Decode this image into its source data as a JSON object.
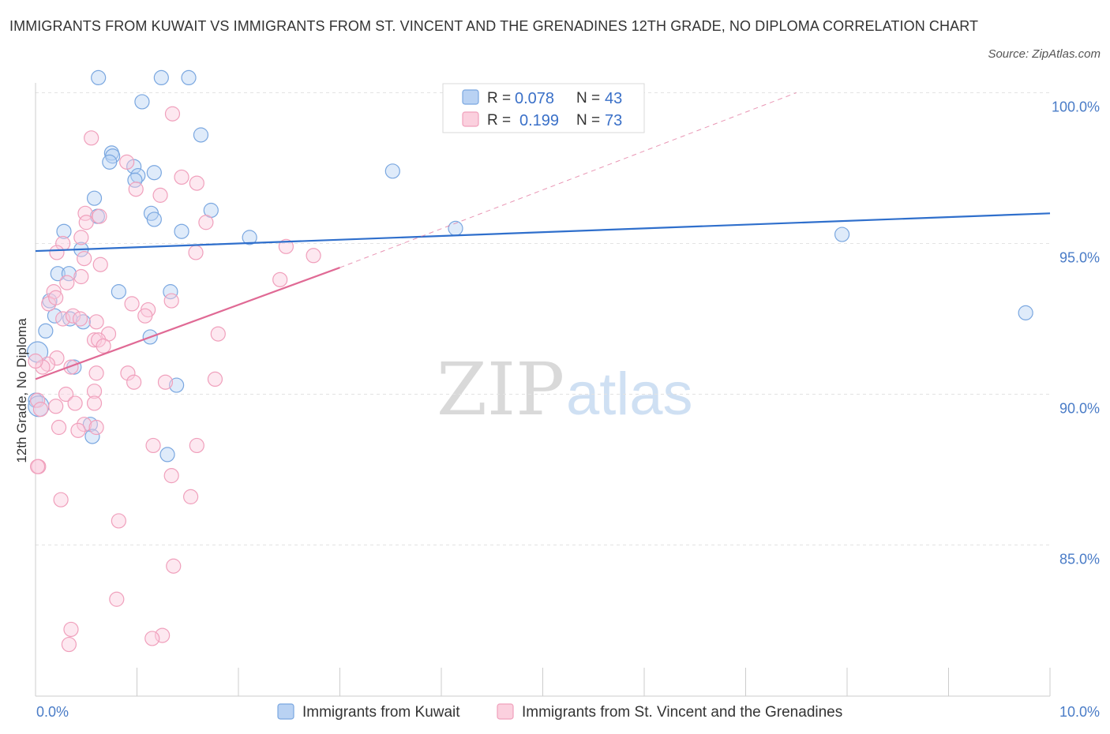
{
  "title": "IMMIGRANTS FROM KUWAIT VS IMMIGRANTS FROM ST. VINCENT AND THE GRENADINES 12TH GRADE, NO DIPLOMA CORRELATION CHART",
  "source": "Source: ZipAtlas.com",
  "watermark": {
    "zip": "ZIP",
    "atlas": "atlas"
  },
  "chart_data": {
    "type": "scatter",
    "ylabel": "12th Grade, No Diploma",
    "xlim": [
      0,
      10
    ],
    "ylim": [
      80,
      100
    ],
    "x_tick_labels": [
      "0.0%",
      "10.0%"
    ],
    "y_ticks": [
      85,
      90,
      95,
      100
    ],
    "y_tick_labels": [
      "85.0%",
      "90.0%",
      "95.0%",
      "100.0%"
    ],
    "legend": [
      {
        "r_label": "R = ",
        "r_value": "0.078",
        "n_label": "N = ",
        "n_value": "43",
        "color": "#7aa7e0"
      },
      {
        "r_label": "R = ",
        "r_value": "0.199",
        "n_label": "N = ",
        "n_value": "73",
        "color": "#f0a0bc"
      }
    ],
    "series": [
      {
        "name": "Immigrants from Kuwait",
        "color": "#7aa7e0",
        "line_color": "#2f6fcc",
        "trend": {
          "x0": 0.0,
          "y0": 94.75,
          "x1": 10.0,
          "y1": 96.0
        },
        "points": [
          [
            0.62,
            100.5
          ],
          [
            1.24,
            100.5
          ],
          [
            1.51,
            100.5
          ],
          [
            1.05,
            99.7
          ],
          [
            1.63,
            98.6
          ],
          [
            0.75,
            98.0
          ],
          [
            0.76,
            97.9
          ],
          [
            0.73,
            97.7
          ],
          [
            0.97,
            97.55
          ],
          [
            1.17,
            97.35
          ],
          [
            1.01,
            97.25
          ],
          [
            0.98,
            97.1
          ],
          [
            3.52,
            97.4
          ],
          [
            0.58,
            96.5
          ],
          [
            0.61,
            95.9
          ],
          [
            1.14,
            96.0
          ],
          [
            1.17,
            95.8
          ],
          [
            1.73,
            96.1
          ],
          [
            1.44,
            95.4
          ],
          [
            0.28,
            95.4
          ],
          [
            2.11,
            95.2
          ],
          [
            4.14,
            95.5
          ],
          [
            7.95,
            95.3
          ],
          [
            0.45,
            94.8
          ],
          [
            0.22,
            94.0
          ],
          [
            0.33,
            94.0
          ],
          [
            0.82,
            93.4
          ],
          [
            1.33,
            93.4
          ],
          [
            0.14,
            93.1
          ],
          [
            0.19,
            92.6
          ],
          [
            0.34,
            92.5
          ],
          [
            0.47,
            92.4
          ],
          [
            0.1,
            92.1
          ],
          [
            1.13,
            91.9
          ],
          [
            9.76,
            92.7
          ],
          [
            0.02,
            91.4
          ],
          [
            0.38,
            90.9
          ],
          [
            1.39,
            90.3
          ],
          [
            0.0,
            89.8
          ],
          [
            0.54,
            89.0
          ],
          [
            0.56,
            88.6
          ],
          [
            1.3,
            88.0
          ],
          [
            0.03,
            89.6
          ]
        ]
      },
      {
        "name": "Immigrants from St. Vincent and the Grenadines",
        "color": "#f0a0bc",
        "line_color": "#e06a95",
        "trend": {
          "x0": 0.0,
          "y0": 90.5,
          "x1": 3.0,
          "y1": 94.2
        },
        "trend_ext": {
          "x0": 3.0,
          "y0": 94.2,
          "x1": 7.5,
          "y1": 100.0
        },
        "points": [
          [
            0.55,
            98.5
          ],
          [
            1.35,
            99.3
          ],
          [
            0.9,
            97.7
          ],
          [
            1.44,
            97.2
          ],
          [
            1.59,
            97.0
          ],
          [
            0.99,
            96.8
          ],
          [
            1.23,
            96.6
          ],
          [
            0.49,
            96.0
          ],
          [
            0.5,
            95.7
          ],
          [
            0.63,
            95.9
          ],
          [
            0.45,
            95.2
          ],
          [
            1.68,
            95.7
          ],
          [
            0.27,
            95.0
          ],
          [
            0.21,
            94.7
          ],
          [
            0.48,
            94.5
          ],
          [
            1.58,
            94.7
          ],
          [
            2.47,
            94.9
          ],
          [
            2.74,
            94.6
          ],
          [
            0.64,
            94.3
          ],
          [
            0.45,
            93.9
          ],
          [
            0.31,
            93.7
          ],
          [
            2.41,
            93.8
          ],
          [
            0.18,
            93.4
          ],
          [
            0.13,
            93.0
          ],
          [
            0.95,
            93.0
          ],
          [
            1.11,
            92.8
          ],
          [
            1.34,
            93.1
          ],
          [
            0.27,
            92.5
          ],
          [
            0.37,
            92.6
          ],
          [
            0.44,
            92.5
          ],
          [
            1.08,
            92.6
          ],
          [
            0.72,
            92.0
          ],
          [
            0.58,
            91.8
          ],
          [
            0.62,
            91.8
          ],
          [
            0.67,
            91.6
          ],
          [
            0.21,
            91.2
          ],
          [
            0.12,
            91.0
          ],
          [
            0.07,
            90.9
          ],
          [
            0.0,
            91.1
          ],
          [
            0.35,
            90.9
          ],
          [
            0.6,
            90.7
          ],
          [
            0.91,
            90.7
          ],
          [
            0.97,
            90.4
          ],
          [
            1.28,
            90.4
          ],
          [
            1.77,
            90.5
          ],
          [
            0.3,
            90.0
          ],
          [
            0.58,
            90.1
          ],
          [
            0.58,
            89.7
          ],
          [
            0.39,
            89.7
          ],
          [
            0.2,
            89.6
          ],
          [
            0.02,
            89.8
          ],
          [
            0.05,
            89.5
          ],
          [
            0.48,
            89.0
          ],
          [
            0.6,
            88.9
          ],
          [
            0.42,
            88.8
          ],
          [
            0.23,
            88.9
          ],
          [
            1.16,
            88.3
          ],
          [
            1.59,
            88.3
          ],
          [
            1.34,
            87.3
          ],
          [
            0.03,
            87.6
          ],
          [
            0.02,
            87.6
          ],
          [
            0.25,
            86.5
          ],
          [
            1.53,
            86.6
          ],
          [
            0.82,
            85.8
          ],
          [
            1.36,
            84.3
          ],
          [
            0.8,
            83.2
          ],
          [
            0.35,
            82.2
          ],
          [
            0.33,
            81.7
          ],
          [
            1.25,
            82.0
          ],
          [
            1.15,
            81.9
          ],
          [
            0.6,
            92.4
          ],
          [
            0.2,
            93.2
          ],
          [
            1.8,
            92.0
          ]
        ]
      }
    ]
  }
}
